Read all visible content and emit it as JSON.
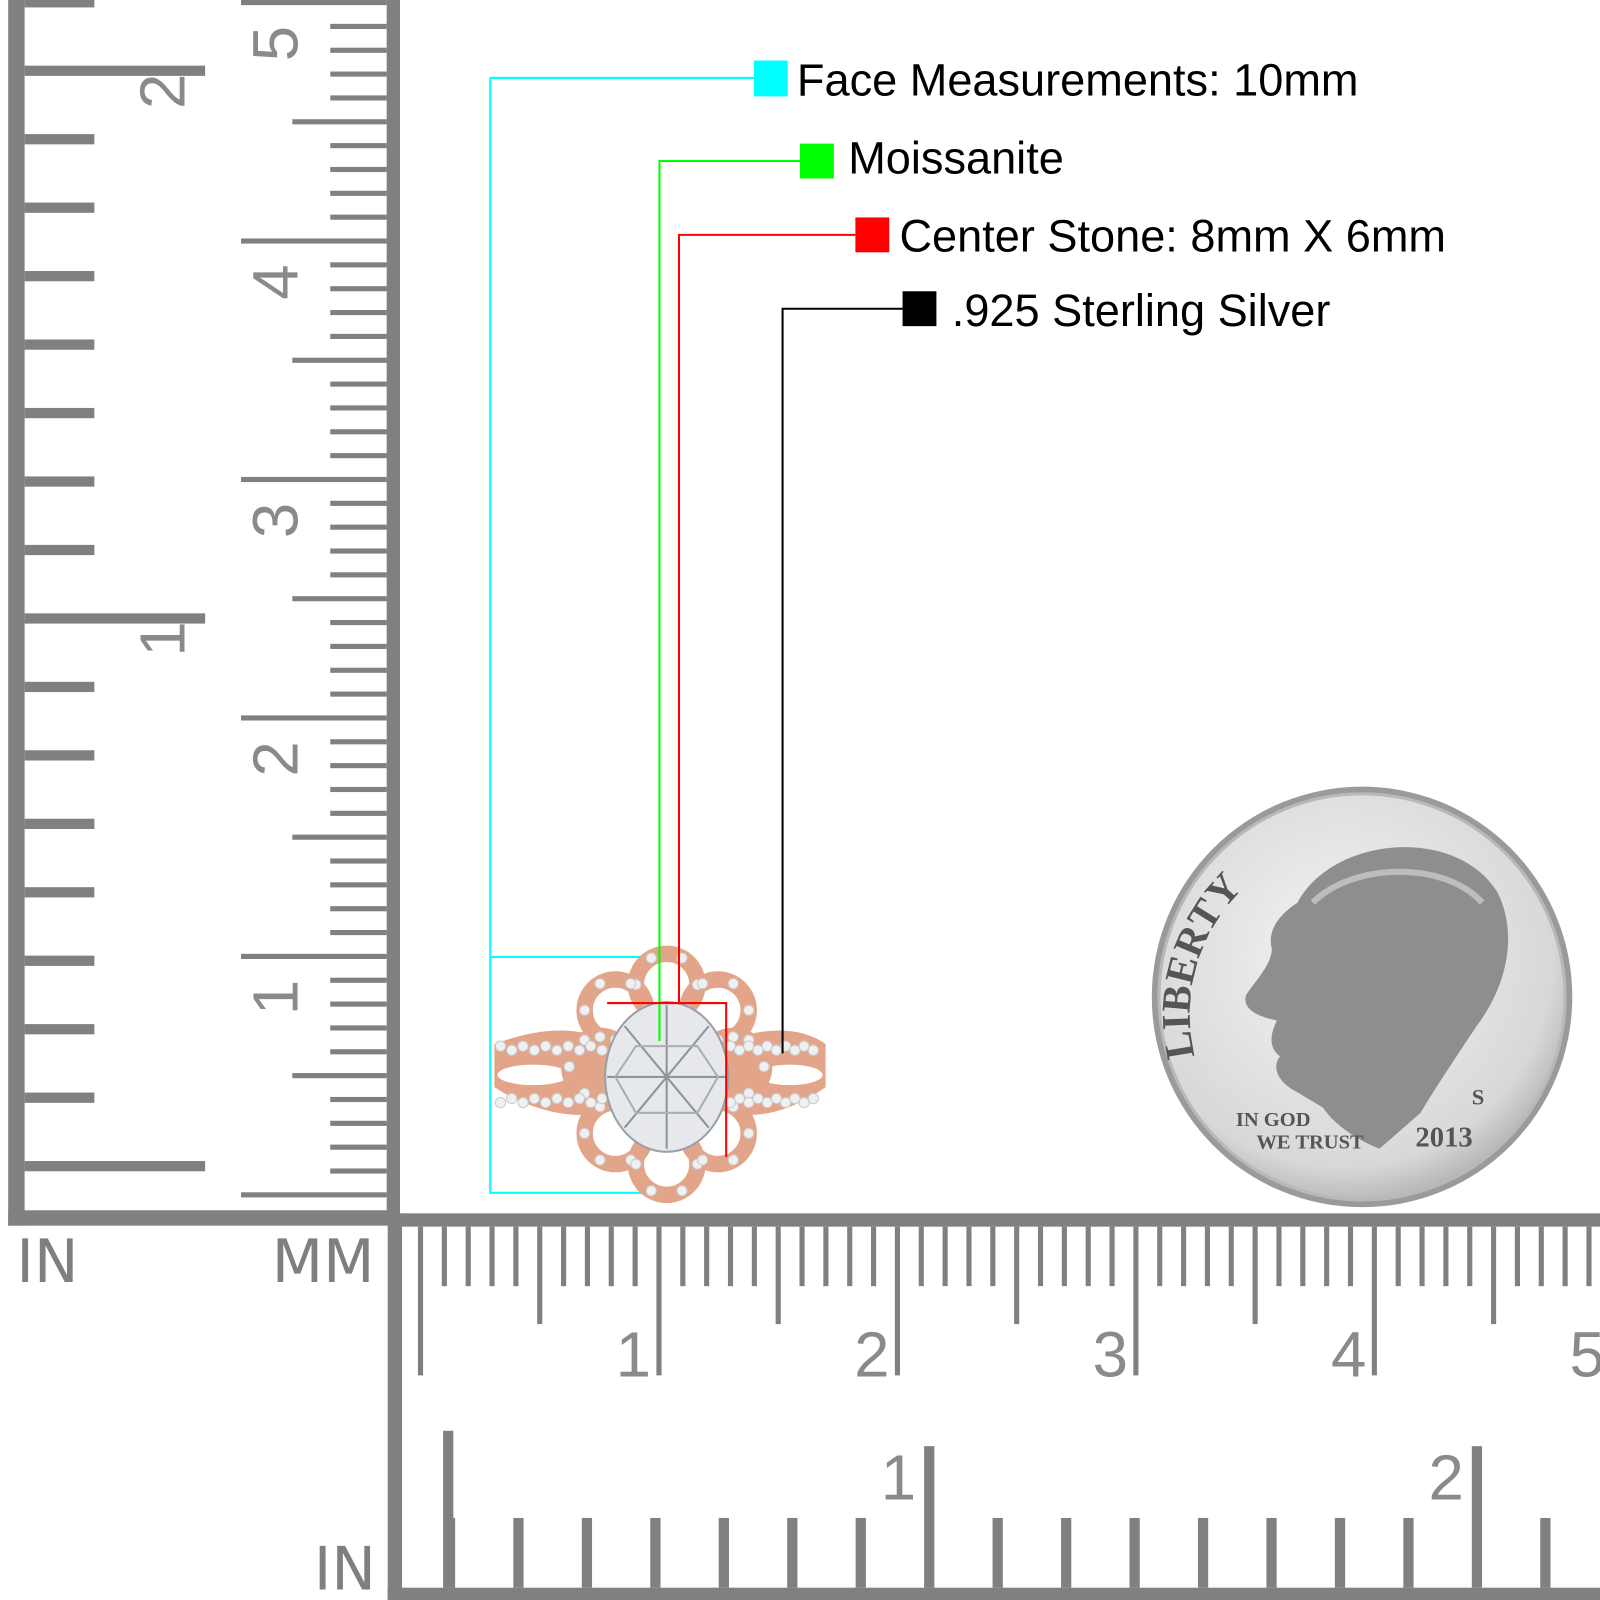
{
  "labels": [
    {
      "text": "Face Measurements: 10mm",
      "color": "#00ffff"
    },
    {
      "text": "Moissanite",
      "color": "#00ff00"
    },
    {
      "text": "Center Stone: 8mm X 6mm",
      "color": "#ff0000"
    },
    {
      "text": ".925 Sterling Silver",
      "color": "#000000"
    }
  ],
  "rulers": {
    "color": "#808080",
    "vertical_in_numbers": [
      "1",
      "2"
    ],
    "vertical_mm_numbers": [
      "1",
      "2",
      "3",
      "4",
      "5"
    ],
    "horizontal_mm_numbers": [
      "1",
      "2",
      "3",
      "4",
      "5"
    ],
    "horizontal_in_numbers": [
      "1",
      "2"
    ],
    "unit_in_left": "IN",
    "unit_mm": "MM",
    "unit_in_bottom": "IN"
  },
  "ring": {
    "metal_color": "#e3a58a",
    "style": "oval halo split shank"
  },
  "coin": {
    "legend": "LIBERTY",
    "motto_line1": "IN GOD",
    "motto_line2": "WE TRUST",
    "year": "2013",
    "mint_mark": "S"
  }
}
